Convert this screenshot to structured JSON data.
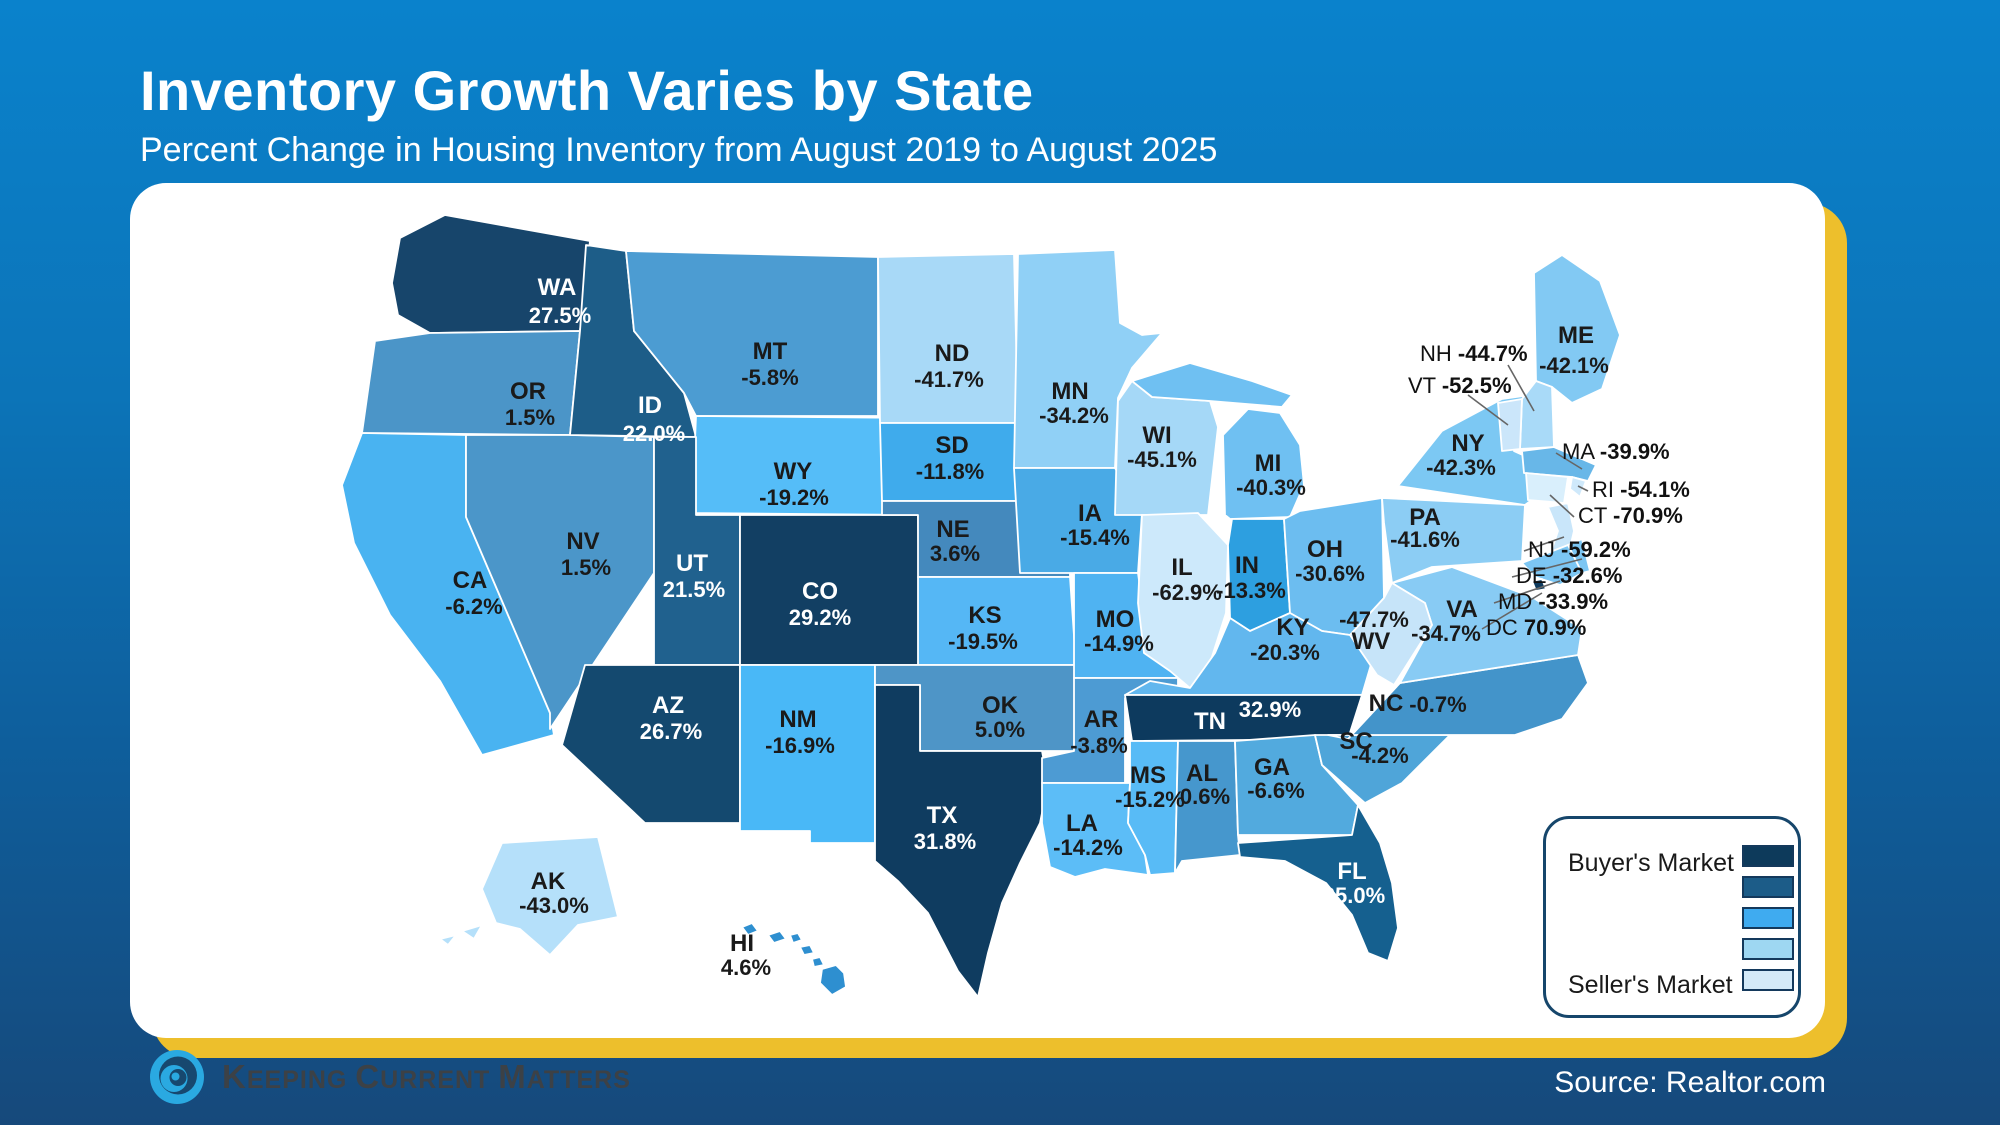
{
  "header": {
    "title": "Inventory Growth Varies by State",
    "subtitle": "Percent Change in Housing Inventory from August 2019 to August 2025"
  },
  "map": {
    "states": [
      {
        "abbr": "WA",
        "value": "27.5%",
        "fill": "#17456b",
        "light": true
      },
      {
        "abbr": "OR",
        "value": "1.5%",
        "fill": "#4b95c8"
      },
      {
        "abbr": "CA",
        "value": "-6.2%",
        "fill": "#49b3f1"
      },
      {
        "abbr": "NV",
        "value": "1.5%",
        "fill": "#4b96c9"
      },
      {
        "abbr": "ID",
        "value": "22.0%",
        "fill": "#1d5d88",
        "light": true
      },
      {
        "abbr": "MT",
        "value": "-5.8%",
        "fill": "#4c9cd2"
      },
      {
        "abbr": "WY",
        "value": "-19.2%",
        "fill": "#55bdf8"
      },
      {
        "abbr": "UT",
        "value": "21.5%",
        "fill": "#20618e",
        "light": true
      },
      {
        "abbr": "CO",
        "value": "29.2%",
        "fill": "#123f63",
        "light": true
      },
      {
        "abbr": "AZ",
        "value": "26.7%",
        "fill": "#14496f",
        "light": true
      },
      {
        "abbr": "NM",
        "value": "-16.9%",
        "fill": "#49b8f7"
      },
      {
        "abbr": "ND",
        "value": "-41.7%",
        "fill": "#a8d9f7"
      },
      {
        "abbr": "SD",
        "value": "-11.8%",
        "fill": "#3fabec"
      },
      {
        "abbr": "NE",
        "value": "3.6%",
        "fill": "#4489bd"
      },
      {
        "abbr": "KS",
        "value": "-19.5%",
        "fill": "#55b7f5"
      },
      {
        "abbr": "OK",
        "value": "5.0%",
        "fill": "#4e95c7"
      },
      {
        "abbr": "TX",
        "value": "31.8%",
        "fill": "#0f3c60",
        "light": true
      },
      {
        "abbr": "MN",
        "value": "-34.2%",
        "fill": "#90d0f6"
      },
      {
        "abbr": "IA",
        "value": "-15.4%",
        "fill": "#49aae6"
      },
      {
        "abbr": "MO",
        "value": "-14.9%",
        "fill": "#4fb3f2"
      },
      {
        "abbr": "AR",
        "value": "-3.8%",
        "fill": "#4d9bd3"
      },
      {
        "abbr": "LA",
        "value": "-14.2%",
        "fill": "#5cbdf7"
      },
      {
        "abbr": "WI",
        "value": "-45.1%",
        "fill": "#a5d8f7"
      },
      {
        "abbr": "IL",
        "value": "-62.9%",
        "fill": "#cde9fb"
      },
      {
        "abbr": "MI",
        "value": "-40.3%",
        "fill": "#6fc0f2"
      },
      {
        "abbr": "IN",
        "value": "-13.3%",
        "fill": "#2d9fe0"
      },
      {
        "abbr": "OH",
        "value": "-30.6%",
        "fill": "#6cbdf0"
      },
      {
        "abbr": "KY",
        "value": "-20.3%",
        "fill": "#62b7ee"
      },
      {
        "abbr": "TN",
        "value": "32.9%",
        "fill": "#0d3a5e",
        "light": true
      },
      {
        "abbr": "MS",
        "value": "-15.2%",
        "fill": "#58bbf6"
      },
      {
        "abbr": "AL",
        "value": "0.6%",
        "fill": "#4697cd"
      },
      {
        "abbr": "GA",
        "value": "-6.6%",
        "fill": "#52aade"
      },
      {
        "abbr": "FL",
        "value": "25.0%",
        "fill": "#15608f",
        "light": true
      },
      {
        "abbr": "SC",
        "value": "-4.2%",
        "fill": "#4fa5d9"
      },
      {
        "abbr": "NC",
        "value": "-0.7%",
        "fill": "#4394ca"
      },
      {
        "abbr": "VA",
        "value": "-34.7%",
        "fill": "#88cbf4"
      },
      {
        "abbr": "WV",
        "value": "-47.7%",
        "fill": "#c6e4f9"
      },
      {
        "abbr": "PA",
        "value": "-41.6%",
        "fill": "#8ccdf4"
      },
      {
        "abbr": "NY",
        "value": "-42.3%",
        "fill": "#7cc8f3"
      },
      {
        "abbr": "ME",
        "value": "-42.1%",
        "fill": "#82c9f3"
      },
      {
        "abbr": "AK",
        "value": "-43.0%",
        "fill": "#b5e0fa"
      },
      {
        "abbr": "HI",
        "value": "4.6%",
        "fill": "#2e8fd0"
      },
      {
        "abbr": "NH",
        "value": "-44.7%",
        "fill": "#a9daf8",
        "callout": true
      },
      {
        "abbr": "VT",
        "value": "-52.5%",
        "fill": "#cbe6fa",
        "callout": true
      },
      {
        "abbr": "MA",
        "value": "-39.9%",
        "fill": "#68b7e8",
        "callout": true
      },
      {
        "abbr": "RI",
        "value": "-54.1%",
        "fill": "#cfe9fb",
        "callout": true
      },
      {
        "abbr": "CT",
        "value": "-70.9%",
        "fill": "#d9effc",
        "callout": true
      },
      {
        "abbr": "NJ",
        "value": "-59.2%",
        "fill": "#c9e6fa",
        "callout": true
      },
      {
        "abbr": "DE",
        "value": "-32.6%",
        "fill": "#7cc6f3",
        "callout": true
      },
      {
        "abbr": "MD",
        "value": "-33.9%",
        "fill": "#7cc6f3",
        "callout": true
      },
      {
        "abbr": "DC",
        "value": "70.9%",
        "fill": "#0d3a5e",
        "callout": true
      }
    ]
  },
  "legend": {
    "buyer_label": "Buyer's Market",
    "seller_label": "Seller's Market",
    "swatches": [
      "#0d3a5b",
      "#1c5c88",
      "#3fabf0",
      "#9ed7f2",
      "#d4eaf8"
    ]
  },
  "footer": {
    "brand_words": [
      "Keeping",
      "Current",
      "Matters"
    ],
    "source": "Source: Realtor.com"
  },
  "colors": {
    "background_top": "#0a82cc",
    "background_bottom": "#16497b",
    "accent_yellow": "#edbf2c",
    "card": "#ffffff",
    "leader_line": "#666666"
  },
  "chart_data": {
    "type": "heatmap",
    "subtype": "us-choropleth-map",
    "title": "Inventory Growth Varies by State",
    "subtitle": "Percent Change in Housing Inventory from August 2019 to August 2025",
    "unit": "%",
    "legend": {
      "high_label": "Buyer's Market",
      "low_label": "Seller's Market",
      "position": "bottom-right"
    },
    "categories": [
      "WA",
      "OR",
      "CA",
      "NV",
      "ID",
      "MT",
      "WY",
      "UT",
      "CO",
      "AZ",
      "NM",
      "ND",
      "SD",
      "NE",
      "KS",
      "OK",
      "TX",
      "MN",
      "IA",
      "MO",
      "AR",
      "LA",
      "WI",
      "IL",
      "MI",
      "IN",
      "OH",
      "KY",
      "TN",
      "MS",
      "AL",
      "GA",
      "FL",
      "SC",
      "NC",
      "VA",
      "WV",
      "PA",
      "NY",
      "ME",
      "AK",
      "HI",
      "NH",
      "VT",
      "MA",
      "RI",
      "CT",
      "NJ",
      "DE",
      "MD",
      "DC"
    ],
    "values": [
      27.5,
      1.5,
      -6.2,
      1.5,
      22.0,
      -5.8,
      -19.2,
      21.5,
      29.2,
      26.7,
      -16.9,
      -41.7,
      -11.8,
      3.6,
      -19.5,
      5.0,
      31.8,
      -34.2,
      -15.4,
      -14.9,
      -3.8,
      -14.2,
      -45.1,
      -62.9,
      -40.3,
      -13.3,
      -30.6,
      -20.3,
      32.9,
      -15.2,
      0.6,
      -6.6,
      25.0,
      -4.2,
      -0.7,
      -34.7,
      -47.7,
      -41.6,
      -42.3,
      -42.1,
      -43.0,
      4.6,
      -44.7,
      -52.5,
      -39.9,
      -54.1,
      -70.9,
      -59.2,
      -32.6,
      -33.9,
      70.9
    ],
    "source": "Realtor.com"
  }
}
